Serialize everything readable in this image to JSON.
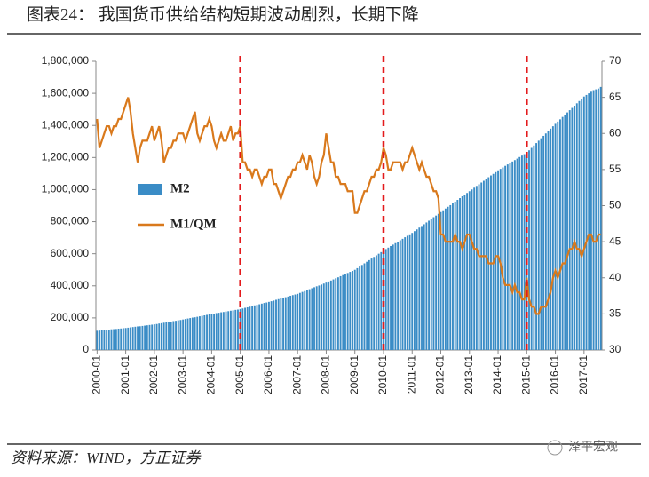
{
  "chart_data": {
    "type": "bar_line",
    "title": "图表24：          我国货币供给结构短期波动剧烈，长期下降",
    "source": "资料来源：WIND，方正证券",
    "watermark": "泽平宏观",
    "categories": [
      "2000-01",
      null,
      null,
      null,
      null,
      null,
      null,
      null,
      null,
      null,
      null,
      null,
      "2001-01",
      null,
      null,
      null,
      null,
      null,
      null,
      null,
      null,
      null,
      null,
      null,
      "2002-01",
      null,
      null,
      null,
      null,
      null,
      null,
      null,
      null,
      null,
      null,
      null,
      "2003-01",
      null,
      null,
      null,
      null,
      null,
      null,
      null,
      null,
      null,
      null,
      null,
      "2004-01",
      null,
      null,
      null,
      null,
      null,
      null,
      null,
      null,
      null,
      null,
      null,
      "2005-01",
      null,
      null,
      null,
      null,
      null,
      null,
      null,
      null,
      null,
      null,
      null,
      "2006-01",
      null,
      null,
      null,
      null,
      null,
      null,
      null,
      null,
      null,
      null,
      null,
      "2007-01",
      null,
      null,
      null,
      null,
      null,
      null,
      null,
      null,
      null,
      null,
      null,
      "2008-01",
      null,
      null,
      null,
      null,
      null,
      null,
      null,
      null,
      null,
      null,
      null,
      "2009-01",
      null,
      null,
      null,
      null,
      null,
      null,
      null,
      null,
      null,
      null,
      null,
      "2010-01",
      null,
      null,
      null,
      null,
      null,
      null,
      null,
      null,
      null,
      null,
      null,
      "2011-01",
      null,
      null,
      null,
      null,
      null,
      null,
      null,
      null,
      null,
      null,
      null,
      "2012-01",
      null,
      null,
      null,
      null,
      null,
      null,
      null,
      null,
      null,
      null,
      null,
      "2013-01",
      null,
      null,
      null,
      null,
      null,
      null,
      null,
      null,
      null,
      null,
      null,
      "2014-01",
      null,
      null,
      null,
      null,
      null,
      null,
      null,
      null,
      null,
      null,
      null,
      "2015-01",
      null,
      null,
      null,
      null,
      null,
      null,
      null,
      null,
      null,
      null,
      null,
      "2016-01",
      null,
      null,
      null,
      null,
      null,
      null,
      null,
      null,
      null,
      null,
      null,
      "2017-01",
      null,
      null,
      null,
      null,
      null,
      null,
      null
    ],
    "series": [
      {
        "name": "M2",
        "type": "bar",
        "axis": "y",
        "color": "#3a8cc6",
        "values": [
          120000,
          121000,
          123000,
          124000,
          126000,
          127000,
          129000,
          130000,
          131000,
          133000,
          134000,
          136000,
          137000,
          139000,
          141000,
          143000,
          145000,
          147000,
          148000,
          150000,
          152000,
          154000,
          156000,
          158000,
          160000,
          162000,
          165000,
          167000,
          170000,
          172000,
          175000,
          177000,
          180000,
          182000,
          185000,
          187000,
          190000,
          193000,
          196000,
          199000,
          202000,
          204000,
          207000,
          210000,
          213000,
          216000,
          219000,
          222000,
          225000,
          227000,
          230000,
          232000,
          235000,
          237000,
          240000,
          242000,
          245000,
          247000,
          250000,
          252000,
          255000,
          259000,
          263000,
          266000,
          270000,
          274000,
          278000,
          281000,
          285000,
          289000,
          293000,
          296000,
          300000,
          304000,
          308000,
          313000,
          317000,
          321000,
          325000,
          329000,
          333000,
          338000,
          342000,
          346000,
          350000,
          356000,
          362000,
          367000,
          373000,
          379000,
          385000,
          391000,
          397000,
          402000,
          408000,
          414000,
          420000,
          427000,
          433000,
          440000,
          447000,
          453000,
          460000,
          467000,
          473000,
          480000,
          487000,
          493000,
          500000,
          510000,
          520000,
          530000,
          540000,
          550000,
          560000,
          570000,
          580000,
          590000,
          600000,
          610000,
          620000,
          629000,
          638000,
          648000,
          657000,
          666000,
          675000,
          684000,
          693000,
          703000,
          712000,
          721000,
          730000,
          741000,
          752000,
          763000,
          773000,
          784000,
          795000,
          806000,
          817000,
          828000,
          838000,
          849000,
          860000,
          871000,
          882000,
          893000,
          903000,
          914000,
          925000,
          936000,
          947000,
          958000,
          968000,
          979000,
          990000,
          1001000,
          1012000,
          1023000,
          1033000,
          1044000,
          1055000,
          1066000,
          1077000,
          1088000,
          1098000,
          1109000,
          1120000,
          1129000,
          1138000,
          1148000,
          1157000,
          1166000,
          1175000,
          1184000,
          1193000,
          1203000,
          1212000,
          1221000,
          1230000,
          1245000,
          1260000,
          1275000,
          1290000,
          1305000,
          1320000,
          1335000,
          1350000,
          1365000,
          1380000,
          1395000,
          1410000,
          1424000,
          1438000,
          1453000,
          1467000,
          1481000,
          1495000,
          1509000,
          1523000,
          1538000,
          1552000,
          1566000,
          1580000,
          1590000,
          1600000,
          1610000,
          1620000,
          1625000,
          1630000,
          1640000
        ]
      },
      {
        "name": "M1/QM",
        "type": "line",
        "axis": "y2",
        "color": "#d9791c",
        "values": [
          62,
          58,
          59,
          60,
          61,
          61,
          60,
          61,
          61,
          62,
          62,
          63,
          64,
          65,
          63,
          60,
          58,
          56,
          58,
          59,
          59,
          59,
          60,
          61,
          59,
          60,
          61,
          59,
          56,
          57,
          58,
          58,
          59,
          59,
          60,
          60,
          60,
          59,
          60,
          61,
          62,
          63,
          60,
          59,
          60,
          61,
          61,
          62,
          61,
          59,
          58,
          59,
          60,
          59,
          59,
          60,
          61,
          59,
          60,
          60,
          61,
          56,
          56,
          55,
          55,
          54,
          55,
          55,
          54,
          53,
          54,
          54,
          55,
          55,
          53,
          53,
          52,
          51,
          52,
          53,
          54,
          54,
          55,
          55,
          56,
          56,
          57,
          56,
          55,
          57,
          56,
          54,
          53,
          54,
          56,
          57,
          60,
          58,
          56,
          56,
          54,
          54,
          53,
          53,
          53,
          52,
          52,
          52,
          49,
          49,
          50,
          51,
          52,
          52,
          53,
          54,
          54,
          55,
          55,
          56,
          58,
          57,
          55,
          55,
          56,
          56,
          56,
          56,
          55,
          56,
          56,
          57,
          58,
          57,
          56,
          55,
          56,
          55,
          54,
          54,
          53,
          52,
          52,
          51,
          46,
          46,
          45,
          45,
          45,
          45,
          46,
          45,
          45,
          44,
          45,
          46,
          46,
          45,
          44,
          44,
          43,
          43,
          43,
          43,
          42,
          42,
          42,
          43,
          43,
          42,
          40,
          39,
          39,
          39,
          38,
          39,
          38,
          38,
          37,
          37,
          40,
          37,
          36,
          36,
          35,
          35,
          36,
          36,
          36,
          37,
          38,
          40,
          41,
          40,
          41,
          42,
          42,
          43,
          44,
          44,
          45,
          44,
          44,
          43,
          44,
          45,
          46,
          46,
          45,
          45,
          46,
          46
        ]
      }
    ],
    "reference_lines": [
      "2005-01",
      "2010-01",
      "2015-01"
    ],
    "ylim": [
      0,
      1800000
    ],
    "yticks": [
      {
        "value": 0,
        "label": "0"
      },
      {
        "value": 200000,
        "label": "200,000"
      },
      {
        "value": 400000,
        "label": "400,000"
      },
      {
        "value": 600000,
        "label": "600,000"
      },
      {
        "value": 800000,
        "label": "800,000"
      },
      {
        "value": 1000000,
        "label": "1,000,000"
      },
      {
        "value": 1200000,
        "label": "1,200,000"
      },
      {
        "value": 1400000,
        "label": "1,400,000"
      },
      {
        "value": 1600000,
        "label": "1,600,000"
      },
      {
        "value": 1800000,
        "label": "1,800,000"
      }
    ],
    "y2lim": [
      30,
      70
    ],
    "y2ticks": [
      30,
      35,
      40,
      45,
      50,
      55,
      60,
      65,
      70
    ],
    "grid": false
  }
}
